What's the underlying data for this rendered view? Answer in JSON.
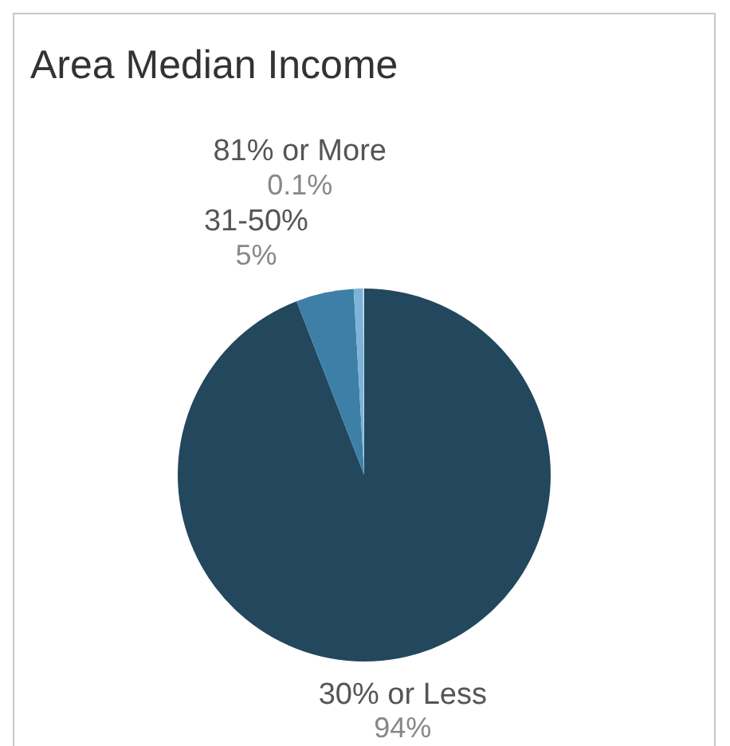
{
  "chart_data": {
    "type": "pie",
    "title": "Area Median Income",
    "categories": [
      "30% or Less",
      "31-50%",
      null,
      "81% or More"
    ],
    "values": [
      94,
      5,
      0.8,
      0.1
    ],
    "value_labels": [
      "94%",
      "5%",
      null,
      "0.1%"
    ],
    "colors": [
      "#23475d",
      "#3d7fa6",
      "#7eb3d8",
      "#bcdcef"
    ],
    "legend": false
  }
}
